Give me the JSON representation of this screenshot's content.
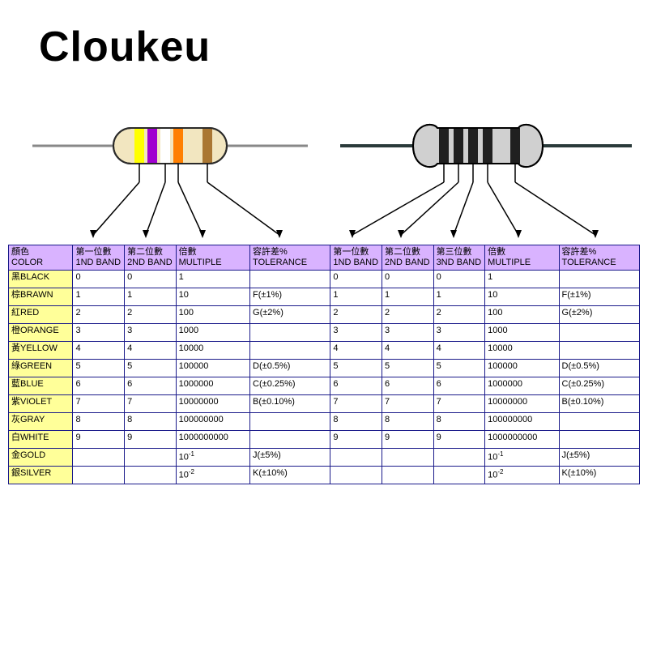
{
  "brand": "Cloukeu",
  "resistor4": {
    "lead_color": "#888888",
    "body_fill": "#f2e6c0",
    "body_stroke": "#2a2a2a",
    "bands": [
      "#ffff00",
      "#a000d0",
      "#ffffff",
      "#ff7f00",
      "#aa7733"
    ],
    "arrow_color": "#000000"
  },
  "resistor5": {
    "lead_color": "#2a3a3a",
    "body_fill": "#d0d0d0",
    "body_stroke": "#000000",
    "bands": [
      "#202020",
      "#202020",
      "#202020",
      "#202020",
      "#202020"
    ],
    "arrow_color": "#000000"
  },
  "table": {
    "headers": [
      {
        "l1": "顏色",
        "l2": "COLOR"
      },
      {
        "l1": "第一位數",
        "l2": "1ND BAND"
      },
      {
        "l1": "第二位數",
        "l2": "2ND BAND"
      },
      {
        "l1": "倍數",
        "l2": "MULTIPLE"
      },
      {
        "l1": "容許差%",
        "l2": "TOLERANCE"
      },
      {
        "l1": "第一位數",
        "l2": "1ND BAND"
      },
      {
        "l1": "第二位數",
        "l2": "2ND BAND"
      },
      {
        "l1": "第三位數",
        "l2": "3ND BAND"
      },
      {
        "l1": "倍數",
        "l2": "MULTIPLE"
      },
      {
        "l1": "容許差%",
        "l2": "TOLERANCE"
      }
    ],
    "rows": [
      {
        "color": "黑BLACK",
        "b1": "0",
        "b2": "0",
        "m": "1",
        "t": "",
        "c1": "0",
        "c2": "0",
        "c3": "0",
        "m2": "1",
        "t2": ""
      },
      {
        "color": "棕BRAWN",
        "b1": "1",
        "b2": "1",
        "m": "10",
        "t": "F(±1%)",
        "c1": "1",
        "c2": "1",
        "c3": "1",
        "m2": "10",
        "t2": "F(±1%)"
      },
      {
        "color": "紅RED",
        "b1": "2",
        "b2": "2",
        "m": "100",
        "t": "G(±2%)",
        "c1": "2",
        "c2": "2",
        "c3": "2",
        "m2": "100",
        "t2": "G(±2%)"
      },
      {
        "color": "橙ORANGE",
        "b1": "3",
        "b2": "3",
        "m": "1000",
        "t": "",
        "c1": "3",
        "c2": "3",
        "c3": "3",
        "m2": "1000",
        "t2": ""
      },
      {
        "color": "黃YELLOW",
        "b1": "4",
        "b2": "4",
        "m": "10000",
        "t": "",
        "c1": "4",
        "c2": "4",
        "c3": "4",
        "m2": "10000",
        "t2": ""
      },
      {
        "color": "綠GREEN",
        "b1": "5",
        "b2": "5",
        "m": "100000",
        "t": "D(±0.5%)",
        "c1": "5",
        "c2": "5",
        "c3": "5",
        "m2": "100000",
        "t2": "D(±0.5%)"
      },
      {
        "color": "藍BLUE",
        "b1": "6",
        "b2": "6",
        "m": "1000000",
        "t": "C(±0.25%)",
        "c1": "6",
        "c2": "6",
        "c3": "6",
        "m2": "1000000",
        "t2": "C(±0.25%)"
      },
      {
        "color": "紫VIOLET",
        "b1": "7",
        "b2": "7",
        "m": "10000000",
        "t": "B(±0.10%)",
        "c1": "7",
        "c2": "7",
        "c3": "7",
        "m2": "10000000",
        "t2": "B(±0.10%)"
      },
      {
        "color": "灰GRAY",
        "b1": "8",
        "b2": "8",
        "m": "100000000",
        "t": "",
        "c1": "8",
        "c2": "8",
        "c3": "8",
        "m2": "100000000",
        "t2": ""
      },
      {
        "color": "白WHITE",
        "b1": "9",
        "b2": "9",
        "m": "1000000000",
        "t": "",
        "c1": "9",
        "c2": "9",
        "c3": "9",
        "m2": "1000000000",
        "t2": ""
      },
      {
        "color": "金GOLD",
        "b1": "",
        "b2": "",
        "m": "10^-1",
        "t": "J(±5%)",
        "c1": "",
        "c2": "",
        "c3": "",
        "m2": "10^-1",
        "t2": "J(±5%)"
      },
      {
        "color": "銀SILVER",
        "b1": "",
        "b2": "",
        "m": "10^-2",
        "t": "K(±10%)",
        "c1": "",
        "c2": "",
        "c3": "",
        "m2": "10^-2",
        "t2": "K(±10%)"
      }
    ]
  }
}
